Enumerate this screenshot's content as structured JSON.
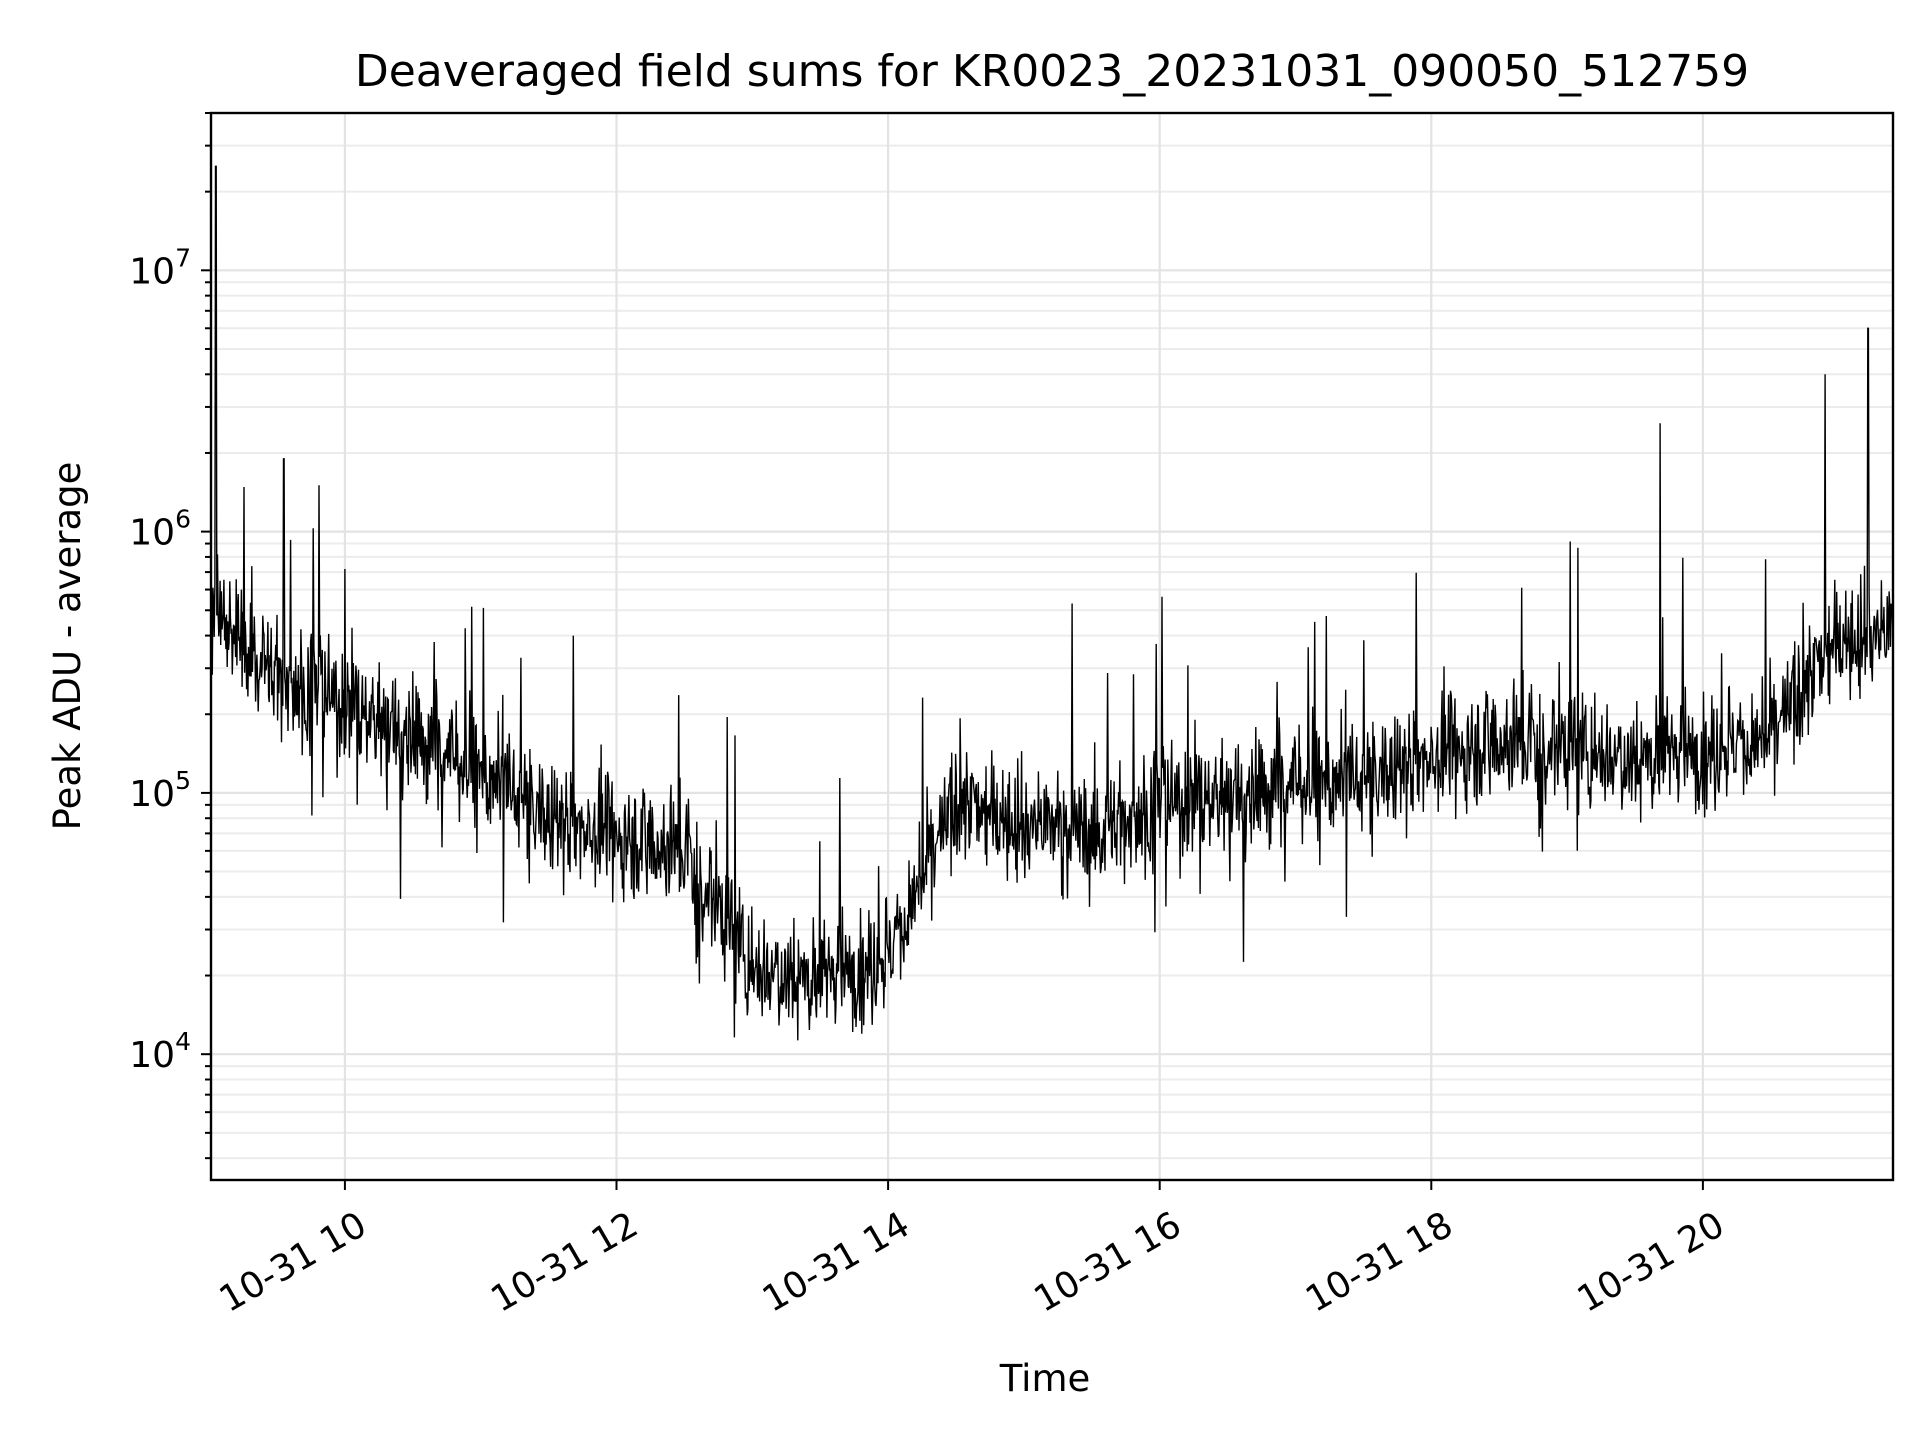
{
  "chart_data": {
    "type": "line",
    "title": "Deaveraged field sums for KR0023_20231031_090050_512759",
    "xlabel": "Time",
    "ylabel": "Peak ADU - average",
    "yscale": "log",
    "ylim": [
      3300,
      40000000
    ],
    "xlim": [
      "2023-10-31 09:00:50",
      "2023-10-31 21:24:00"
    ],
    "grid": true,
    "legend": "none",
    "line_color": "#000000",
    "x_ticks": [
      {
        "label": "10-31 10",
        "time": "2023-10-31 10:00"
      },
      {
        "label": "10-31 12",
        "time": "2023-10-31 12:00"
      },
      {
        "label": "10-31 14",
        "time": "2023-10-31 14:00"
      },
      {
        "label": "10-31 16",
        "time": "2023-10-31 16:00"
      },
      {
        "label": "10-31 18",
        "time": "2023-10-31 18:00"
      },
      {
        "label": "10-31 20",
        "time": "2023-10-31 20:00"
      }
    ],
    "y_ticks": [
      {
        "base": "10",
        "exp": "4",
        "value": 10000
      },
      {
        "base": "10",
        "exp": "5",
        "value": 100000
      },
      {
        "base": "10",
        "exp": "6",
        "value": 1000000
      },
      {
        "base": "10",
        "exp": "7",
        "value": 10000000
      }
    ],
    "series": [
      {
        "values_summary": "dense noisy trace: ~3e5 near 09:00 with spike ~2.5e7, falling to ~1e5 by 11:00, broad dip to ~2e4 around 13:00-14:00, recovering to ~1e5 by 16:00, ~1.5e5 through 20:30, rising to ~4e5 near 21:00 with spikes ~4e6 and ~6e6",
        "x": [
          "2023-10-31 09:00",
          "2023-10-31 09:30",
          "2023-10-31 10:00",
          "2023-10-31 10:30",
          "2023-10-31 11:00",
          "2023-10-31 11:30",
          "2023-10-31 12:00",
          "2023-10-31 12:30",
          "2023-10-31 13:00",
          "2023-10-31 13:30",
          "2023-10-31 14:00",
          "2023-10-31 14:30",
          "2023-10-31 15:00",
          "2023-10-31 15:30",
          "2023-10-31 16:00",
          "2023-10-31 16:30",
          "2023-10-31 17:00",
          "2023-10-31 17:30",
          "2023-10-31 18:00",
          "2023-10-31 18:30",
          "2023-10-31 19:00",
          "2023-10-31 19:30",
          "2023-10-31 20:00",
          "2023-10-31 20:30",
          "2023-10-31 21:00",
          "2023-10-31 21:20"
        ],
        "y": [
          500000,
          280000,
          220000,
          170000,
          120000,
          80000,
          70000,
          60000,
          22000,
          20000,
          24000,
          90000,
          80000,
          70000,
          90000,
          100000,
          110000,
          110000,
          140000,
          160000,
          150000,
          140000,
          150000,
          160000,
          400000,
          420000
        ],
        "spikes": [
          {
            "x": "2023-10-31 09:03",
            "y": 25000000
          },
          {
            "x": "2023-10-31 09:33",
            "y": 1900000
          },
          {
            "x": "2023-10-31 19:41",
            "y": 2600000
          },
          {
            "x": "2023-10-31 20:54",
            "y": 4000000
          },
          {
            "x": "2023-10-31 21:13",
            "y": 6000000
          }
        ]
      }
    ]
  }
}
